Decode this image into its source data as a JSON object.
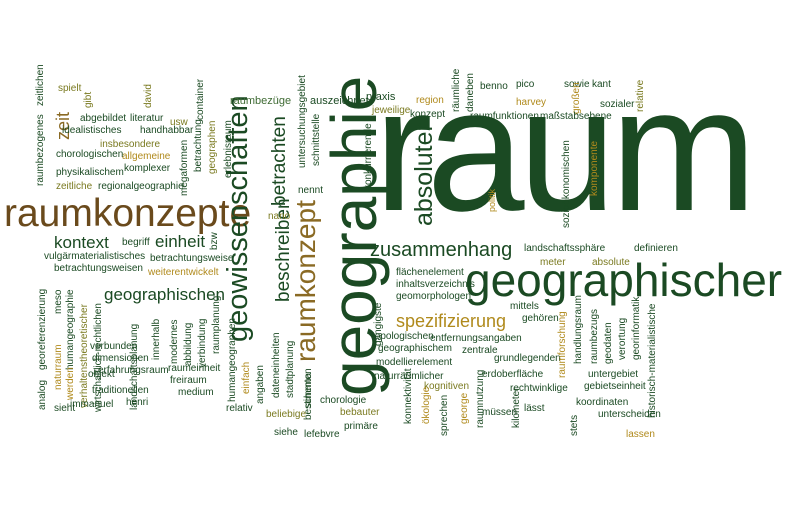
{
  "palette": {
    "dark_green": "#1b4a23",
    "green": "#3f6b34",
    "olive": "#7a7a20",
    "gold": "#b08a1c",
    "tan": "#8a6a24",
    "brown": "#6a4a1c",
    "background": "#ffffff"
  },
  "words": {
    "raum": "raum",
    "geographie": "geographie",
    "raumkonzepte": "raumkonzepte",
    "geographischer": "geographischer",
    "geowissenschaften": "geowissenschaften",
    "raumkonzept": "raumkonzept",
    "absoluter": "absoluter",
    "zusammenhang": "zusammenhang",
    "spezifizierung": "spezifizierung",
    "geographischen": "geographischen",
    "kontext": "kontext",
    "einheit": "einheit",
    "beschreiben": "beschreiben",
    "betrachten": "betrachten",
    "zeit": "zeit",
    "raumbezüge": "raumbezüge",
    "auszeichnet": "auszeichnet",
    "praxis": "praxis",
    "jeweilige": "jeweilige",
    "region": "region",
    "konzept": "konzept",
    "räumliche": "räumliche",
    "daneben": "daneben",
    "benno": "benno",
    "pico": "pico",
    "sowie": "sowie",
    "kant": "kant",
    "harvey": "harvey",
    "großen": "großen",
    "relative": "relative",
    "sozialer": "sozialer",
    "maßstabsebene": "maßstabsebene",
    "raumfunktionen": "raumfunktionen",
    "sozioökonomischen": "sozioökonomischen",
    "komponente": "komponente",
    "politik": "politik",
    "steht": "steht",
    "nennt": "nennt",
    "nano": "nano",
    "schnittstelle": "schnittstelle",
    "konkurrierende": "konkurrierende",
    "untersuchungsgebiet": "untersuchungsgebiet",
    "zeitlichen": "zeitlichen",
    "raumbezogenes": "raumbezogenes",
    "spielt": "spielt",
    "gibt": "gibt",
    "abgebildet": "abgebildet",
    "literatur": "literatur",
    "usw": "usw",
    "david": "david",
    "idealistisches": "idealistisches",
    "handhabbar": "handhabbar",
    "chorologischen": "chorologischen",
    "insbesondere": "insbesondere",
    "allgemeine": "allgemeine",
    "physikalischem": "physikalischem",
    "komplexer": "komplexer",
    "zeitliche": "zeitliche",
    "regionalgeographie": "regionalgeographie",
    "megaformen": "megaformen",
    "betrachtung": "betrachtung",
    "container": "container",
    "geographen": "geographen",
    "erlebnisraum": "erlebnisraum",
    "bzw": "bzw",
    "begriff": "begriff",
    "vulgärmaterialistisches": "vulgärmaterialistisches",
    "betrachtungsweise": "betrachtungsweise",
    "betrachtungsweisen": "betrachtungsweisen",
    "weiterentwickelt": "weiterentwickelt",
    "landschaftssphäre": "landschaftssphäre",
    "definieren": "definieren",
    "absolute": "absolute",
    "meter": "meter",
    "flächenelement": "flächenelement",
    "inhaltsverzeichnis": "inhaltsverzeichnis",
    "geomorphologen": "geomorphologen",
    "mittels": "mittels",
    "gehören": "gehören",
    "gängigste": "gängigste",
    "topologischen": "topologischen",
    "entfernungsangaben": "entfernungsangaben",
    "geographischem": "geographischem",
    "zentrale": "zentrale",
    "modellierelement": "modellierelement",
    "grundlegenden": "grundlegenden",
    "naturräumlicher": "naturräumlicher",
    "erdoberfläche": "erdoberfläche",
    "rechtwinklige": "rechtwinklige",
    "gebietseinheit": "gebietseinheit",
    "koordinaten": "koordinaten",
    "unterscheiden": "unterscheiden",
    "lassen": "lassen",
    "handlungsraum": "handlungsraum",
    "raumbezugs": "raumbezugs",
    "geodaten": "geodaten",
    "verortung": "verortung",
    "georinformatik": "georinformatik",
    "historisch-materialistische": "historisch-materialistische",
    "untergebiet": "untergebiet",
    "raumforschung": "raumforschung",
    "stets": "stets",
    "kilometer": "kilometer",
    "müssen": "müssen",
    "lässt": "lässt",
    "raumnutzung": "raumnutzung",
    "george": "george",
    "kognitiven": "kognitiven",
    "sprechen": "sprechen",
    "ökologie": "ökologie",
    "konnektivität": "konnektivität",
    "primäre": "primäre",
    "bebauter": "bebauter",
    "chorologie": "chorologie",
    "schema": "schema",
    "bestimmten": "bestimmten",
    "siehe": "siehe",
    "lefebvre": "lefebvre",
    "dateneinheiten": "dateneinheiten",
    "stadtplanung": "stadtplanung",
    "angaben": "angaben",
    "beliebige": "beliebige",
    "einfach": "einfach",
    "humangeographen": "humangeographen",
    "raumplanung": "raumplanung",
    "relativ": "relativ",
    "georeferenzierung": "georeferenzierung",
    "meso": "meso",
    "humangeographie": "humangeographie",
    "werden": "werden",
    "naturraum": "naturraum",
    "verhaltenstheoretischer": "verhaltenstheoretischer",
    "wirtschaftlich-rechtlichen": "wirtschaftlich-rechtlichen",
    "objekt": "objekt",
    "verbunden": "verbunden",
    "dimensionen": "dimensionen",
    "erfahrungsraum": "erfahrungsraum",
    "landschaftsplanung": "landschaftsplanung",
    "innerhalb": "innerhalb",
    "modernes": "modernes",
    "abbildung": "abbildung",
    "verbindung": "verbindung",
    "raumeinheit": "raumeinheit",
    "freiraum": "freiraum",
    "medium": "medium",
    "traditionellen": "traditionellen",
    "analog": "analog",
    "sieht": "sieht",
    "immanuel": "immanuel",
    "henri": "henri"
  }
}
